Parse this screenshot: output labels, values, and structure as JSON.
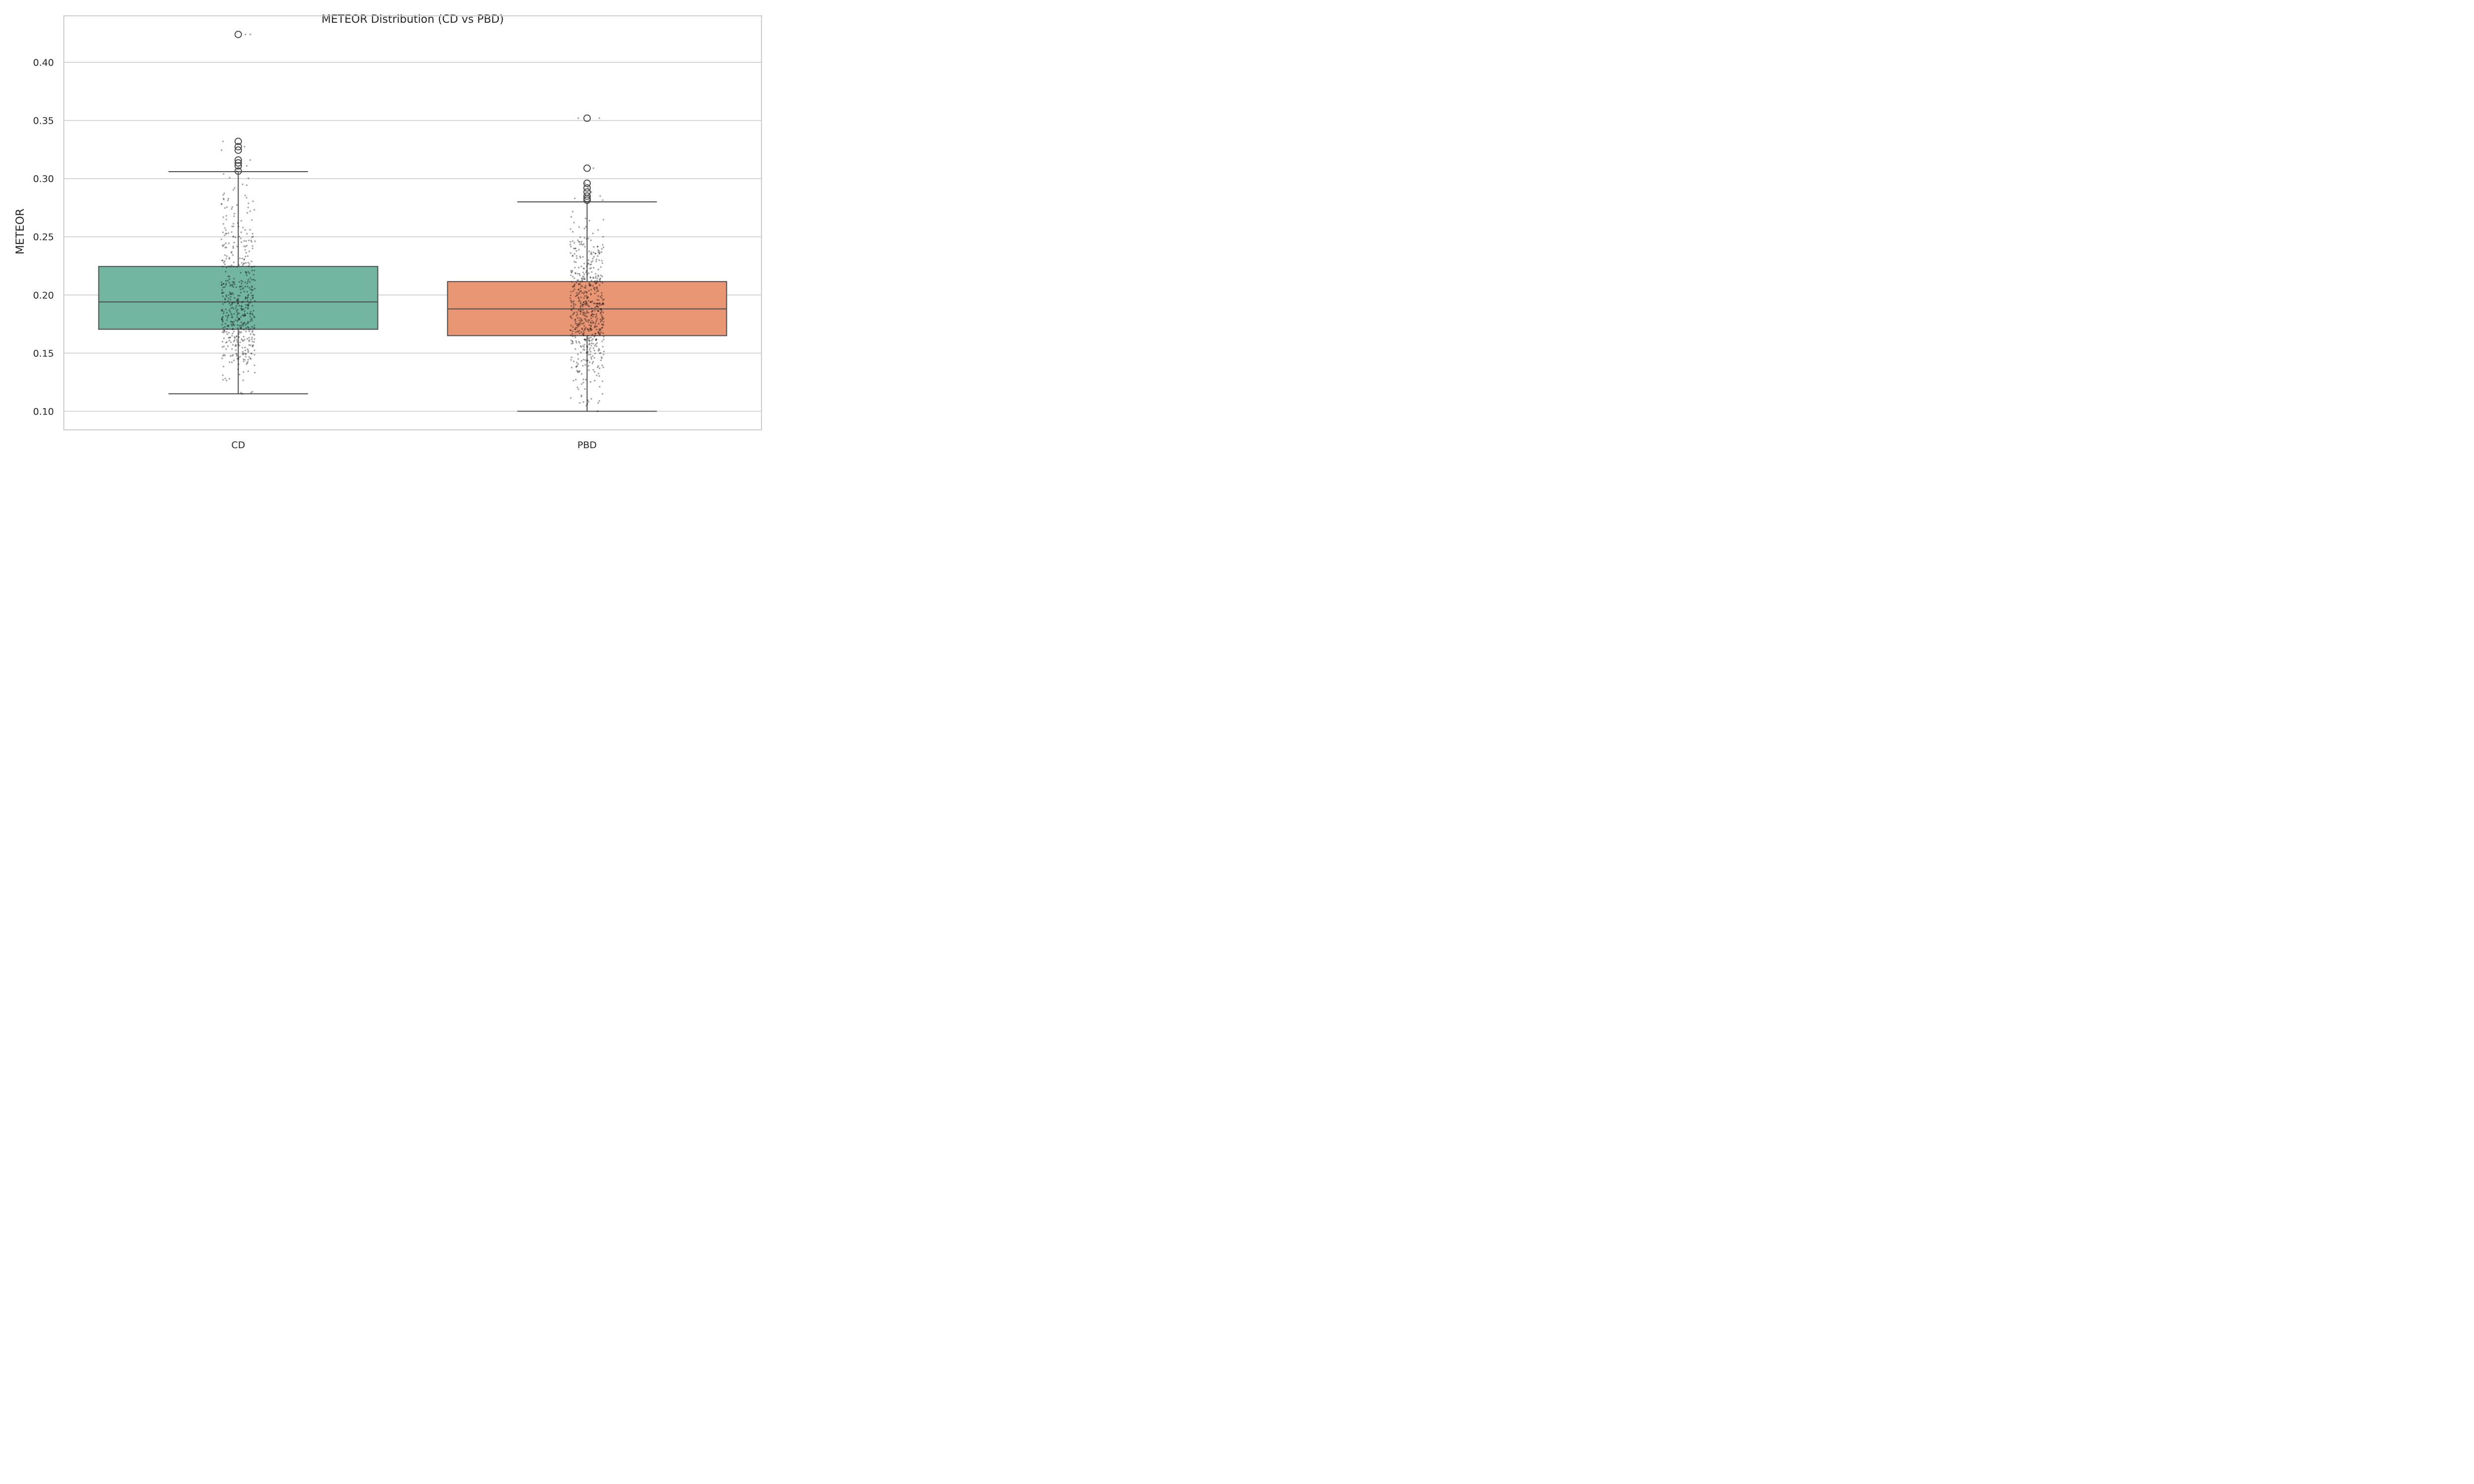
{
  "chart_data": {
    "type": "box",
    "title": "METEOR Distribution (CD vs PBD)",
    "xlabel": "",
    "ylabel": "METEOR",
    "ylim": [
      0.084,
      0.44
    ],
    "yticks": [
      "0.10",
      "0.15",
      "0.20",
      "0.25",
      "0.30",
      "0.35",
      "0.40"
    ],
    "grid": true,
    "categories": [
      "CD",
      "PBD"
    ],
    "boxes": [
      {
        "category": "CD",
        "color": "#72b6a1",
        "whisker_low": 0.115,
        "q1": 0.1705,
        "median": 0.194,
        "q3": 0.2245,
        "whisker_high": 0.306,
        "outliers": [
          0.3065,
          0.311,
          0.3135,
          0.316,
          0.3245,
          0.3275,
          0.332,
          0.424
        ],
        "points": {
          "count": 520,
          "min": 0.115,
          "max": 0.424,
          "median": 0.194,
          "q1": 0.1705,
          "q3": 0.2245
        }
      },
      {
        "category": "PBD",
        "color": "#e99675",
        "whisker_low": 0.1,
        "q1": 0.165,
        "median": 0.188,
        "q3": 0.2115,
        "whisker_high": 0.28,
        "outliers": [
          0.2815,
          0.283,
          0.285,
          0.2885,
          0.292,
          0.296,
          0.309,
          0.352
        ],
        "points": {
          "count": 600,
          "min": 0.1,
          "max": 0.352,
          "median": 0.188,
          "q1": 0.165,
          "q3": 0.2115
        }
      }
    ]
  }
}
